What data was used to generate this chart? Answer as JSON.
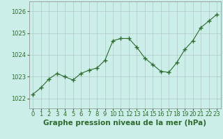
{
  "x": [
    0,
    1,
    2,
    3,
    4,
    5,
    6,
    7,
    8,
    9,
    10,
    11,
    12,
    13,
    14,
    15,
    16,
    17,
    18,
    19,
    20,
    21,
    22,
    23
  ],
  "y": [
    1022.2,
    1022.5,
    1022.9,
    1023.15,
    1023.0,
    1022.85,
    1023.15,
    1023.3,
    1023.4,
    1023.75,
    1024.65,
    1024.75,
    1024.75,
    1024.35,
    1023.85,
    1023.55,
    1023.25,
    1023.2,
    1023.65,
    1024.25,
    1024.65,
    1025.25,
    1025.55,
    1025.85
  ],
  "line_color": "#2d6a2d",
  "marker": "+",
  "marker_size": 5,
  "bg_color": "#cceee8",
  "grid_color": "#b0c8c8",
  "xlabel": "Graphe pression niveau de la mer (hPa)",
  "axis_label_color": "#2d6a2d",
  "tick_color": "#2d6a2d",
  "ylabel_ticks": [
    1022,
    1023,
    1024,
    1025,
    1026
  ],
  "ylim": [
    1021.55,
    1026.45
  ],
  "xlim": [
    -0.5,
    23.5
  ],
  "xticks": [
    0,
    1,
    2,
    3,
    4,
    5,
    6,
    7,
    8,
    9,
    10,
    11,
    12,
    13,
    14,
    15,
    16,
    17,
    18,
    19,
    20,
    21,
    22,
    23
  ],
  "tick_fontsize": 6,
  "xlabel_fontsize": 7.5
}
